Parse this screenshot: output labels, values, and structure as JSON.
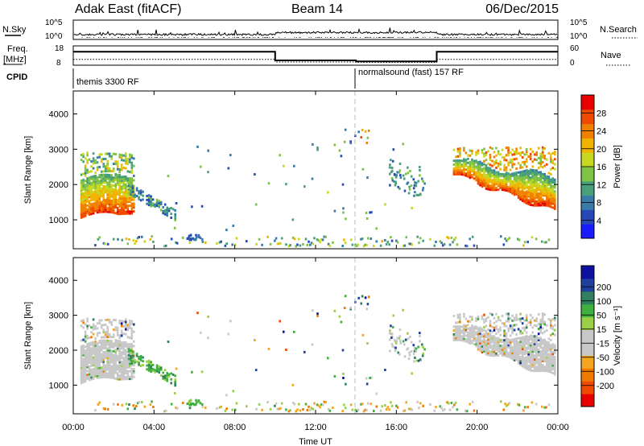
{
  "header": {
    "station": "Adak East (fitACF)",
    "beam": "Beam 14",
    "date": "06/Dec/2015"
  },
  "strip_labels": {
    "nsky": "N.Sky",
    "nsearch": "N.Search",
    "freq_line1": "Freq.",
    "freq_line2": "[MHz]",
    "nave": "Nave",
    "cpid": "CPID",
    "noise_tick_top": "10^5",
    "noise_tick_bottom": "10^0",
    "freq_ticks": [
      "18",
      "8"
    ],
    "nave_ticks": [
      "60",
      "0"
    ]
  },
  "cpid": {
    "mode1": "themis 3300 RF",
    "mode2": "normalsound (fast) 157 RF"
  },
  "colors": {
    "power": [
      "#1a1aff",
      "#2848b8",
      "#3a7aa8",
      "#48a07a",
      "#7fc246",
      "#c8d820",
      "#f0b400",
      "#f08000",
      "#ee4a00",
      "#e80000"
    ],
    "velocity": [
      "#e80000",
      "#f04a00",
      "#f07a00",
      "#f4a620",
      "#c8c8c8",
      "#c8c8c8",
      "#9ad048",
      "#40b040",
      "#308060",
      "#2040a0",
      "#1010a0"
    ]
  },
  "chart_data": [
    {
      "type": "heatmap",
      "name": "power",
      "xlabel": "",
      "ylabel": "Slant Range [km]",
      "xlim": [
        0,
        24
      ],
      "ylim": [
        180,
        4650
      ],
      "yticks": [
        1000,
        2000,
        3000,
        4000
      ],
      "colorbar": {
        "label": "Power [dB]",
        "range": [
          0,
          32
        ],
        "ticks": [
          4,
          8,
          12,
          16,
          20,
          24,
          28
        ]
      },
      "regions": [
        {
          "t": [
            0.4,
            3.0
          ],
          "range": [
            1000,
            2200
          ],
          "value": "18-30 dB"
        },
        {
          "t": [
            2.8,
            5.0
          ],
          "range": [
            1100,
            2000
          ],
          "value": "4-12 dB"
        },
        {
          "t": [
            18.8,
            23.8
          ],
          "range": [
            1150,
            2700
          ],
          "value": "18-30 dB"
        }
      ]
    },
    {
      "type": "heatmap",
      "name": "velocity",
      "xlabel": "Time UT",
      "ylabel": "Slant Range [km]",
      "xlim": [
        0,
        24
      ],
      "ylim": [
        180,
        4650
      ],
      "xticks": [
        "00:00",
        "04:00",
        "08:00",
        "12:00",
        "16:00",
        "20:00",
        "00:00"
      ],
      "yticks": [
        1000,
        2000,
        3000,
        4000
      ],
      "colorbar": {
        "label": "Velocity [m s⁻¹]",
        "ticks": [
          "200",
          "100",
          "50",
          "15",
          "-15",
          "-50",
          "-100",
          "-200"
        ]
      },
      "regions": [
        {
          "t": [
            0.4,
            3.0
          ],
          "range": [
            1000,
            2900
          ],
          "value": "-15 to 15 m/s"
        },
        {
          "t": [
            2.8,
            5.0
          ],
          "range": [
            1100,
            2000
          ],
          "value": "15 to 100 m/s"
        },
        {
          "t": [
            18.8,
            23.8
          ],
          "range": [
            1150,
            2950
          ],
          "value": "-15 to 15 m/s"
        }
      ]
    },
    {
      "type": "line",
      "name": "frequency-and-nave",
      "series": [
        {
          "name": "Freq. [MHz]",
          "x": [
            0,
            10,
            14,
            18,
            24
          ],
          "y": [
            15,
            10.5,
            10,
            15,
            15
          ]
        },
        {
          "name": "Nave",
          "x": [
            0,
            10,
            14,
            18,
            24
          ],
          "y": [
            18,
            10,
            9,
            18,
            18
          ]
        }
      ],
      "ylim_left": [
        8,
        18
      ],
      "ylim_right": [
        0,
        60
      ]
    },
    {
      "type": "line",
      "name": "noise",
      "series": [
        {
          "name": "N.Sky",
          "level": "low"
        },
        {
          "name": "N.Search",
          "level": "low"
        }
      ]
    }
  ]
}
